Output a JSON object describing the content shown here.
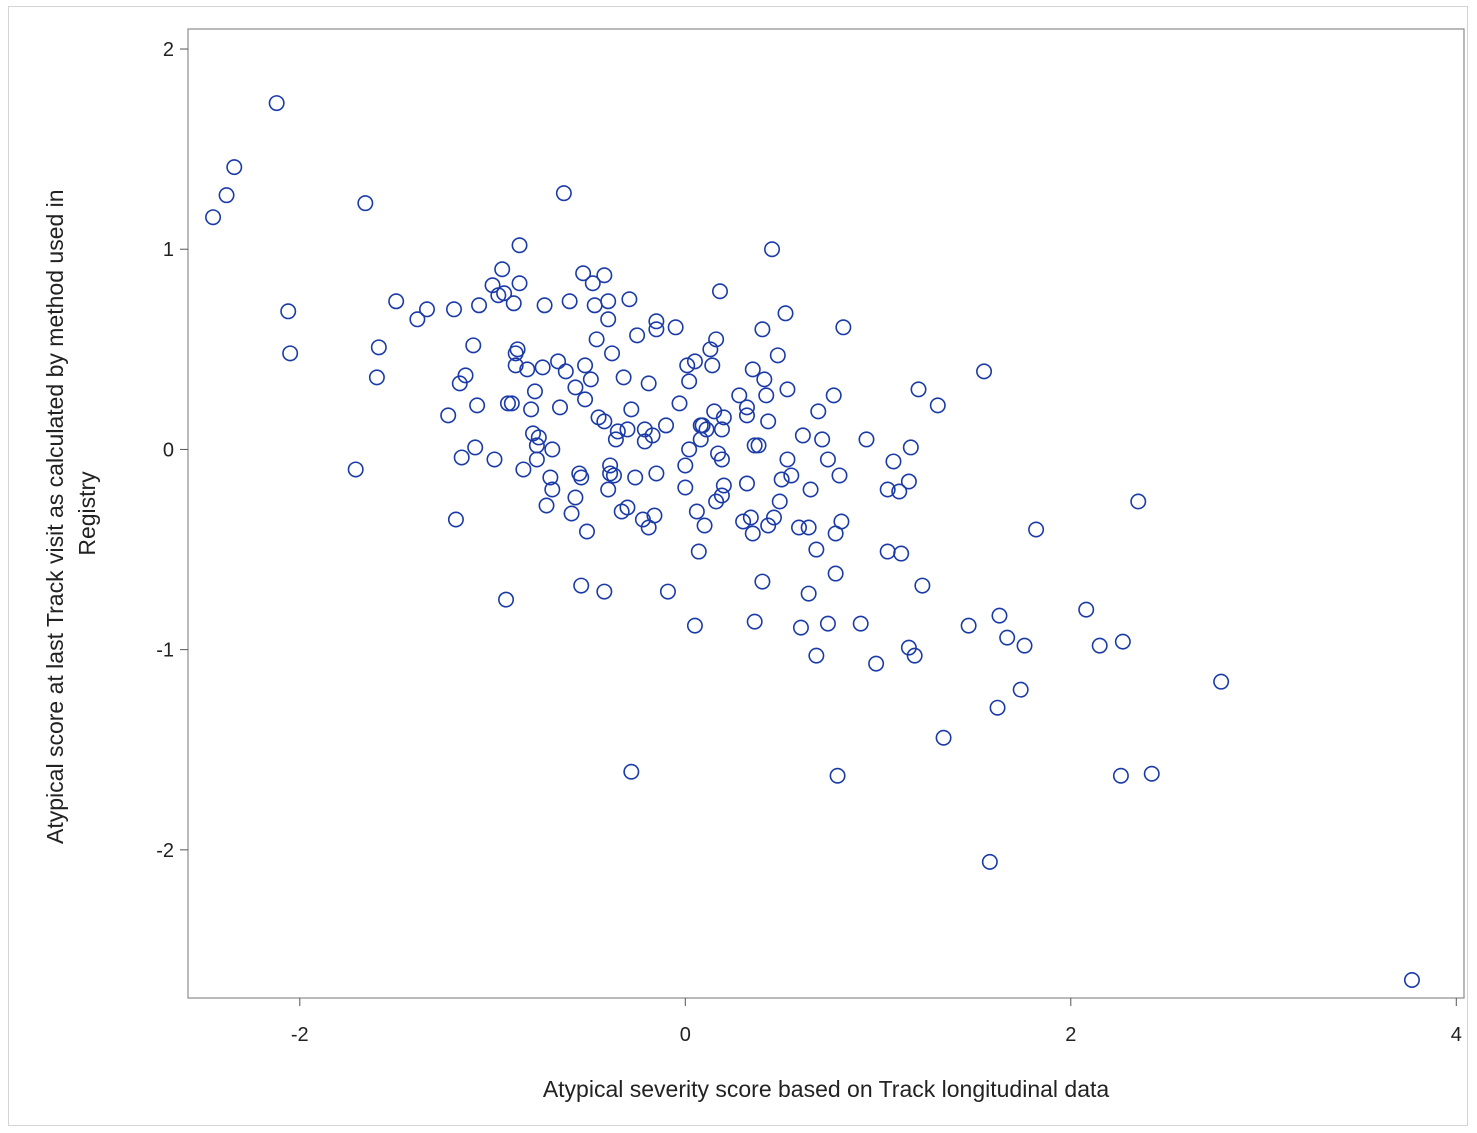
{
  "chart_data": {
    "type": "scatter",
    "xlabel": "Atypical severity score based on Track longitudinal data",
    "ylabel_lines": [
      "Atypical score at last Track visit as calculated by method used in",
      "Registry"
    ],
    "xlim": [
      -2.58,
      4.04
    ],
    "ylim": [
      -2.74,
      2.1
    ],
    "x_ticks": [
      -2,
      0,
      2,
      4
    ],
    "y_ticks": [
      2,
      1,
      0,
      -1,
      -2
    ],
    "x_tick_labels": [
      "-2",
      "0",
      "2",
      "4"
    ],
    "y_tick_labels": [
      "2",
      "1",
      "0",
      "-1",
      "-2"
    ],
    "marker_color": "#1a3aa8",
    "grid": false,
    "points": [
      [
        -2.12,
        1.73
      ],
      [
        -2.34,
        1.41
      ],
      [
        -2.38,
        1.27
      ],
      [
        -2.45,
        1.16
      ],
      [
        -1.66,
        1.23
      ],
      [
        -0.63,
        1.28
      ],
      [
        -2.06,
        0.69
      ],
      [
        -2.05,
        0.48
      ],
      [
        -1.71,
        -0.1
      ],
      [
        -1.59,
        0.51
      ],
      [
        -1.6,
        0.36
      ],
      [
        -1.5,
        0.74
      ],
      [
        -1.39,
        0.65
      ],
      [
        -1.34,
        0.7
      ],
      [
        -1.23,
        0.17
      ],
      [
        -1.2,
        0.7
      ],
      [
        -1.19,
        -0.35
      ],
      [
        -1.17,
        0.33
      ],
      [
        -1.16,
        -0.04
      ],
      [
        -1.14,
        0.37
      ],
      [
        -1.1,
        0.52
      ],
      [
        -1.09,
        0.01
      ],
      [
        -1.08,
        0.22
      ],
      [
        -1.07,
        0.72
      ],
      [
        -1.0,
        0.82
      ],
      [
        -0.99,
        -0.05
      ],
      [
        -0.97,
        0.77
      ],
      [
        -0.95,
        0.9
      ],
      [
        -0.94,
        0.78
      ],
      [
        -0.93,
        -0.75
      ],
      [
        -0.92,
        0.23
      ],
      [
        -0.9,
        0.23
      ],
      [
        -0.89,
        0.73
      ],
      [
        -0.88,
        0.48
      ],
      [
        -0.88,
        0.42
      ],
      [
        -0.87,
        0.5
      ],
      [
        -0.86,
        1.02
      ],
      [
        -0.86,
        0.83
      ],
      [
        -0.84,
        -0.1
      ],
      [
        -0.82,
        0.4
      ],
      [
        -0.8,
        0.2
      ],
      [
        -0.79,
        0.08
      ],
      [
        -0.78,
        0.29
      ],
      [
        -0.77,
        0.02
      ],
      [
        -0.77,
        -0.05
      ],
      [
        -0.76,
        0.06
      ],
      [
        -0.74,
        0.41
      ],
      [
        -0.73,
        0.72
      ],
      [
        -0.72,
        -0.28
      ],
      [
        -0.7,
        -0.14
      ],
      [
        -0.69,
        -0.2
      ],
      [
        -0.69,
        0.0
      ],
      [
        -0.66,
        0.44
      ],
      [
        -0.65,
        0.21
      ],
      [
        -0.62,
        0.39
      ],
      [
        -0.6,
        0.74
      ],
      [
        -0.59,
        -0.32
      ],
      [
        -0.57,
        0.31
      ],
      [
        -0.57,
        -0.24
      ],
      [
        -0.55,
        -0.12
      ],
      [
        -0.54,
        -0.68
      ],
      [
        -0.54,
        -0.14
      ],
      [
        -0.53,
        0.88
      ],
      [
        -0.52,
        0.42
      ],
      [
        -0.52,
        0.25
      ],
      [
        -0.51,
        -0.41
      ],
      [
        -0.49,
        0.35
      ],
      [
        -0.48,
        0.83
      ],
      [
        -0.47,
        0.72
      ],
      [
        -0.46,
        0.55
      ],
      [
        -0.45,
        0.16
      ],
      [
        -0.42,
        0.14
      ],
      [
        -0.42,
        0.87
      ],
      [
        -0.42,
        -0.71
      ],
      [
        -0.4,
        0.74
      ],
      [
        -0.4,
        0.65
      ],
      [
        -0.4,
        -0.2
      ],
      [
        -0.39,
        -0.12
      ],
      [
        -0.39,
        -0.08
      ],
      [
        -0.38,
        0.48
      ],
      [
        -0.37,
        -0.13
      ],
      [
        -0.36,
        0.05
      ],
      [
        -0.35,
        0.09
      ],
      [
        -0.33,
        -0.31
      ],
      [
        -0.32,
        0.36
      ],
      [
        -0.3,
        0.1
      ],
      [
        -0.3,
        -0.29
      ],
      [
        -0.29,
        0.75
      ],
      [
        -0.28,
        0.2
      ],
      [
        -0.28,
        -1.61
      ],
      [
        -0.26,
        -0.14
      ],
      [
        -0.25,
        0.57
      ],
      [
        -0.22,
        -0.35
      ],
      [
        -0.21,
        0.1
      ],
      [
        -0.21,
        0.04
      ],
      [
        -0.19,
        0.33
      ],
      [
        -0.19,
        -0.39
      ],
      [
        -0.17,
        0.07
      ],
      [
        -0.16,
        -0.33
      ],
      [
        -0.15,
        0.6
      ],
      [
        -0.15,
        0.64
      ],
      [
        -0.15,
        -0.12
      ],
      [
        -0.1,
        0.12
      ],
      [
        -0.09,
        -0.71
      ],
      [
        -0.05,
        0.61
      ],
      [
        -0.03,
        0.23
      ],
      [
        0.0,
        -0.08
      ],
      [
        0.0,
        -0.19
      ],
      [
        0.01,
        0.42
      ],
      [
        0.02,
        0.34
      ],
      [
        0.02,
        0.0
      ],
      [
        0.05,
        0.44
      ],
      [
        0.05,
        -0.88
      ],
      [
        0.06,
        -0.31
      ],
      [
        0.07,
        -0.51
      ],
      [
        0.08,
        0.12
      ],
      [
        0.08,
        0.05
      ],
      [
        0.09,
        0.12
      ],
      [
        0.1,
        -0.38
      ],
      [
        0.11,
        0.1
      ],
      [
        0.13,
        0.5
      ],
      [
        0.14,
        0.42
      ],
      [
        0.15,
        0.19
      ],
      [
        0.16,
        0.55
      ],
      [
        0.16,
        -0.26
      ],
      [
        0.17,
        -0.02
      ],
      [
        0.18,
        0.79
      ],
      [
        0.19,
        0.1
      ],
      [
        0.19,
        -0.23
      ],
      [
        0.19,
        -0.05
      ],
      [
        0.2,
        0.16
      ],
      [
        0.2,
        -0.18
      ],
      [
        0.28,
        0.27
      ],
      [
        0.3,
        -0.36
      ],
      [
        0.32,
        0.21
      ],
      [
        0.32,
        0.17
      ],
      [
        0.32,
        -0.17
      ],
      [
        0.34,
        -0.34
      ],
      [
        0.35,
        0.4
      ],
      [
        0.35,
        -0.42
      ],
      [
        0.36,
        0.02
      ],
      [
        0.36,
        -0.86
      ],
      [
        0.38,
        0.02
      ],
      [
        0.4,
        0.6
      ],
      [
        0.4,
        -0.66
      ],
      [
        0.41,
        0.35
      ],
      [
        0.42,
        0.27
      ],
      [
        0.43,
        0.14
      ],
      [
        0.43,
        -0.38
      ],
      [
        0.45,
        1.0
      ],
      [
        0.46,
        -0.34
      ],
      [
        0.48,
        0.47
      ],
      [
        0.49,
        -0.26
      ],
      [
        0.5,
        -0.15
      ],
      [
        0.52,
        0.68
      ],
      [
        0.53,
        0.3
      ],
      [
        0.53,
        -0.05
      ],
      [
        0.55,
        -0.13
      ],
      [
        0.59,
        -0.39
      ],
      [
        0.6,
        -0.89
      ],
      [
        0.61,
        0.07
      ],
      [
        0.64,
        -0.39
      ],
      [
        0.64,
        -0.72
      ],
      [
        0.65,
        -0.2
      ],
      [
        0.68,
        -0.5
      ],
      [
        0.68,
        -1.03
      ],
      [
        0.69,
        0.19
      ],
      [
        0.71,
        0.05
      ],
      [
        0.74,
        -0.05
      ],
      [
        0.74,
        -0.87
      ],
      [
        0.77,
        0.27
      ],
      [
        0.78,
        -0.62
      ],
      [
        0.78,
        -0.42
      ],
      [
        0.79,
        -1.63
      ],
      [
        0.8,
        -0.13
      ],
      [
        0.81,
        -0.36
      ],
      [
        0.82,
        0.61
      ],
      [
        0.91,
        -0.87
      ],
      [
        0.94,
        0.05
      ],
      [
        0.99,
        -1.07
      ],
      [
        1.05,
        -0.51
      ],
      [
        1.05,
        -0.2
      ],
      [
        1.08,
        -0.06
      ],
      [
        1.11,
        -0.21
      ],
      [
        1.12,
        -0.52
      ],
      [
        1.16,
        -0.16
      ],
      [
        1.16,
        -0.99
      ],
      [
        1.17,
        0.01
      ],
      [
        1.19,
        -1.03
      ],
      [
        1.21,
        0.3
      ],
      [
        1.23,
        -0.68
      ],
      [
        1.31,
        0.22
      ],
      [
        1.34,
        -1.44
      ],
      [
        1.47,
        -0.88
      ],
      [
        1.55,
        0.39
      ],
      [
        1.58,
        -2.06
      ],
      [
        1.62,
        -1.29
      ],
      [
        1.63,
        -0.83
      ],
      [
        1.67,
        -0.94
      ],
      [
        1.74,
        -1.2
      ],
      [
        1.76,
        -0.98
      ],
      [
        1.82,
        -0.4
      ],
      [
        2.08,
        -0.8
      ],
      [
        2.15,
        -0.98
      ],
      [
        2.26,
        -1.63
      ],
      [
        2.27,
        -0.96
      ],
      [
        2.35,
        -0.26
      ],
      [
        2.42,
        -1.62
      ],
      [
        2.78,
        -1.16
      ],
      [
        3.77,
        -2.65
      ]
    ]
  }
}
